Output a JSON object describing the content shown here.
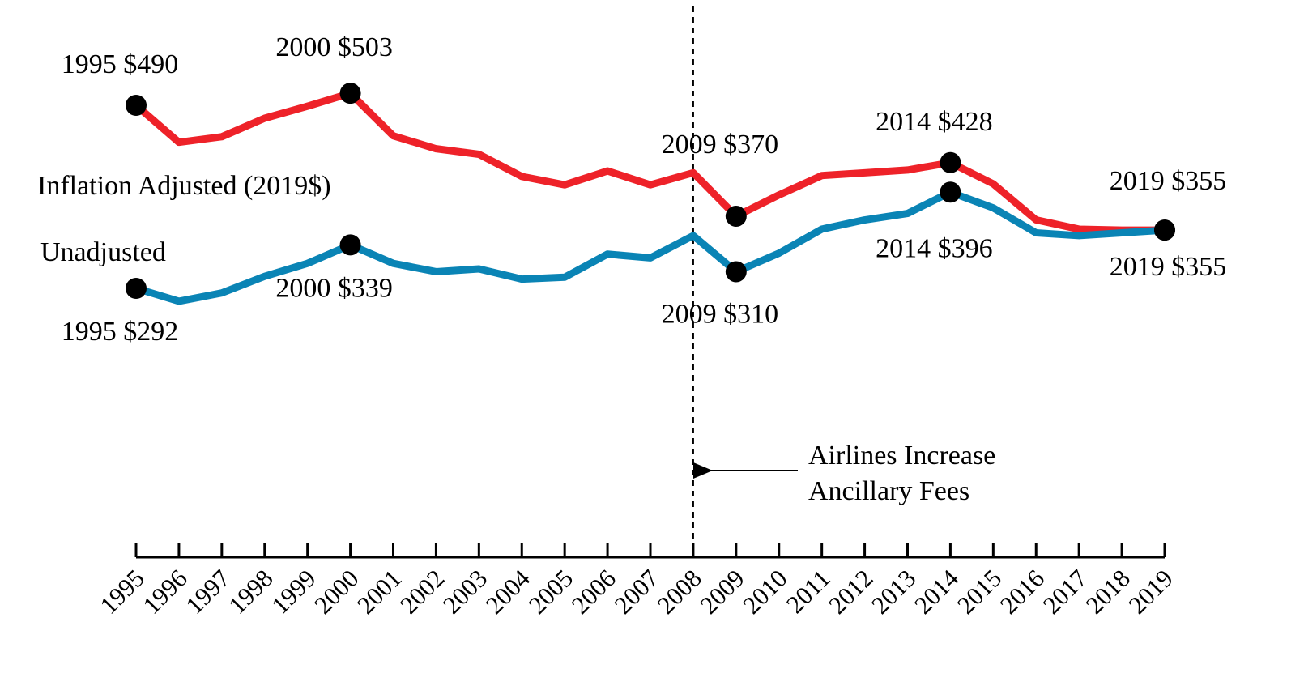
{
  "chart_data": {
    "type": "line",
    "title": "",
    "xlabel": "",
    "ylabel": "",
    "x": [
      1995,
      1996,
      1997,
      1998,
      1999,
      2000,
      2001,
      2002,
      2003,
      2004,
      2005,
      2006,
      2007,
      2008,
      2009,
      2010,
      2011,
      2012,
      2013,
      2014,
      2015,
      2016,
      2017,
      2018,
      2019
    ],
    "x_tick_labels": [
      "1995",
      "1996",
      "1997",
      "1998",
      "1999",
      "2000",
      "2001",
      "2002",
      "2003",
      "2004",
      "2005",
      "2006",
      "2007",
      "2008",
      "2009",
      "2010",
      "2011",
      "2012",
      "2013",
      "2014",
      "2015",
      "2016",
      "2017",
      "2018",
      "2019"
    ],
    "ylim": [
      200,
      540
    ],
    "grid": false,
    "series": [
      {
        "name": "Inflation Adjusted (2019$)",
        "color": "#ee2229",
        "values": [
          490,
          450,
          456,
          476,
          489,
          503,
          457,
          443,
          437,
          413,
          404,
          419,
          404,
          417,
          370,
          393,
          414,
          417,
          420,
          428,
          405,
          366,
          356,
          355,
          355
        ]
      },
      {
        "name": "Unadjusted",
        "color": "#0a84b5",
        "values": [
          292,
          278,
          287,
          305,
          319,
          339,
          319,
          310,
          313,
          302,
          304,
          329,
          325,
          349,
          310,
          330,
          356,
          366,
          373,
          396,
          379,
          352,
          349,
          352,
          355
        ]
      }
    ],
    "point_labels": [
      {
        "series": 0,
        "x": 1995,
        "text": "1995 $490",
        "anchor": "above"
      },
      {
        "series": 0,
        "x": 2000,
        "text": "2000 $503",
        "anchor": "above"
      },
      {
        "series": 0,
        "x": 2009,
        "text": "2009 $370",
        "anchor": "above"
      },
      {
        "series": 0,
        "x": 2014,
        "text": "2014 $428",
        "anchor": "above"
      },
      {
        "series": 0,
        "x": 2019,
        "text": "2019 $355",
        "anchor": "above"
      },
      {
        "series": 1,
        "x": 1995,
        "text": "1995 $292",
        "anchor": "below"
      },
      {
        "series": 1,
        "x": 2000,
        "text": "2000 $339",
        "anchor": "below"
      },
      {
        "series": 1,
        "x": 2009,
        "text": "2009 $310",
        "anchor": "below"
      },
      {
        "series": 1,
        "x": 2014,
        "text": "2014 $396",
        "anchor": "below"
      },
      {
        "series": 1,
        "x": 2019,
        "text": "2019 $355",
        "anchor": "below"
      }
    ],
    "marker_years": [
      1995,
      2000,
      2009,
      2014,
      2019
    ],
    "annotation": {
      "x": 2008,
      "lines": [
        "Airlines Increase",
        "Ancillary Fees"
      ]
    }
  }
}
